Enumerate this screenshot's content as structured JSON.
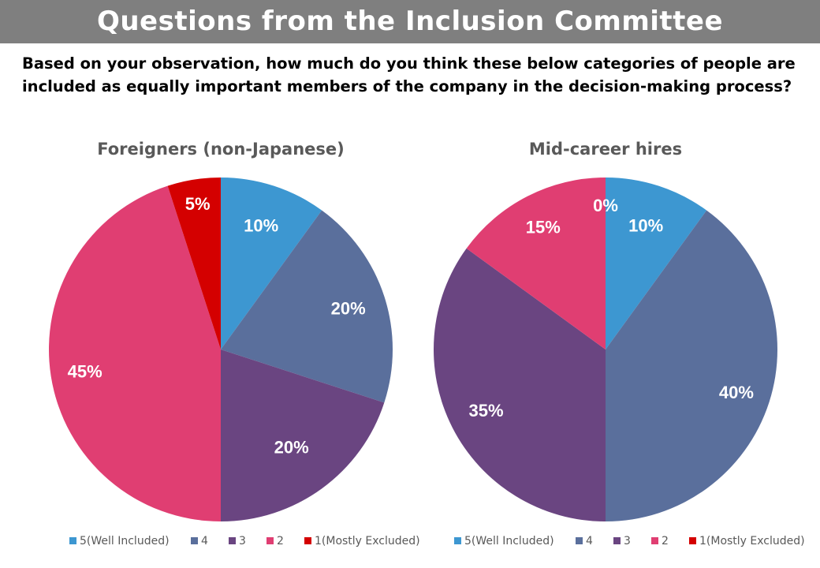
{
  "header": {
    "title": "Questions from the Inclusion Committee",
    "question": "Based on your observation, how much do you think these below categories of people are included as equally important members of the company in the decision-making process?"
  },
  "colors": {
    "banner": "#7f7f7f",
    "text_dark": "#000000",
    "text_muted": "#595959",
    "label_text": "#ffffff"
  },
  "chart_data": [
    {
      "type": "pie",
      "title": "Foreigners (non-Japanese)",
      "categories": [
        "5(Well Included)",
        "4",
        "3",
        "2",
        "1(Mostly Excluded)"
      ],
      "values": [
        10,
        20,
        20,
        45,
        5
      ],
      "labels": [
        "10%",
        "20%",
        "20%",
        "45%",
        "5%"
      ],
      "colors": [
        "#3d97d1",
        "#5a6f9c",
        "#6a4581",
        "#e03e72",
        "#d40000"
      ],
      "legend": "bottom"
    },
    {
      "type": "pie",
      "title": "Mid-career hires",
      "categories": [
        "5(Well Included)",
        "4",
        "3",
        "2",
        "1(Mostly Excluded)"
      ],
      "values": [
        10,
        40,
        35,
        15,
        0
      ],
      "labels": [
        "10%",
        "40%",
        "35%",
        "15%",
        "0%"
      ],
      "colors": [
        "#3d97d1",
        "#5a6f9c",
        "#6a4581",
        "#e03e72",
        "#d40000"
      ],
      "legend": "bottom"
    }
  ]
}
